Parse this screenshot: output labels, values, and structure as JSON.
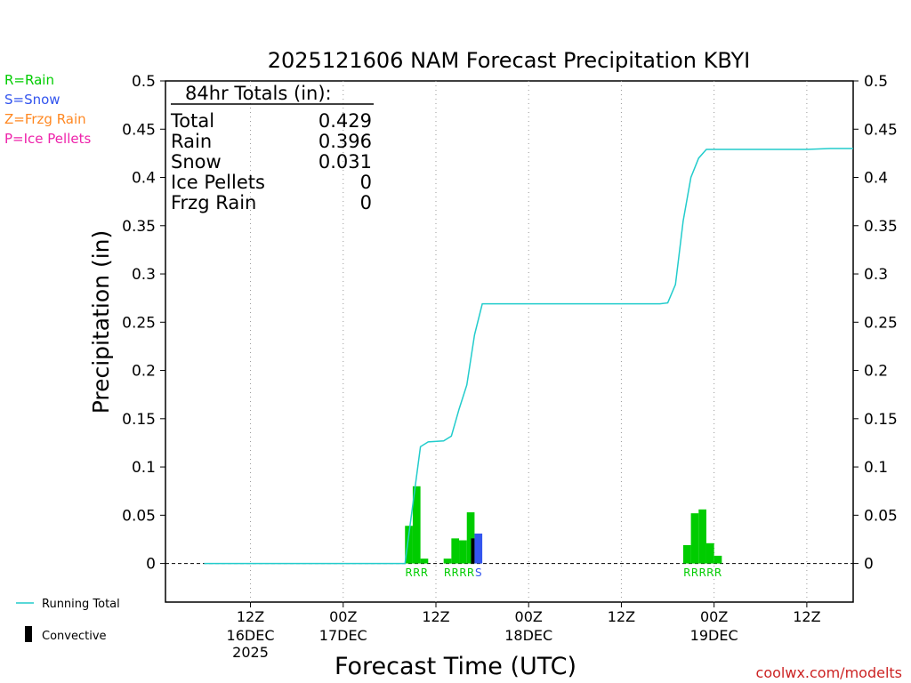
{
  "chart_data": {
    "type": "bar",
    "title": "2025121606 NAM Forecast Precipitation KBYI",
    "xlabel": "Forecast Time (UTC)",
    "ylabel": "Precipitation (in)",
    "ylim": [
      -0.04,
      0.5
    ],
    "y_ticks": [
      0,
      0.05,
      0.1,
      0.15,
      0.2,
      0.25,
      0.3,
      0.35,
      0.4,
      0.45,
      0.5
    ],
    "y_tick_labels": [
      "0",
      "0.05",
      "0.1",
      "0.15",
      "0.2",
      "0.25",
      "0.3",
      "0.35",
      "0.4",
      "0.45",
      "0.5"
    ],
    "x_range_hours": [
      -5,
      84
    ],
    "x_ticks": [
      {
        "hour": 6,
        "line1": "12Z",
        "line2": "16DEC",
        "line3": "2025"
      },
      {
        "hour": 18,
        "line1": "00Z",
        "line2": "17DEC",
        "line3": ""
      },
      {
        "hour": 30,
        "line1": "12Z",
        "line2": "",
        "line3": ""
      },
      {
        "hour": 42,
        "line1": "00Z",
        "line2": "18DEC",
        "line3": ""
      },
      {
        "hour": 54,
        "line1": "12Z",
        "line2": "",
        "line3": ""
      },
      {
        "hour": 66,
        "line1": "00Z",
        "line2": "19DEC",
        "line3": ""
      },
      {
        "hour": 78,
        "line1": "12Z",
        "line2": "",
        "line3": ""
      }
    ],
    "bars": [
      {
        "hour": 27,
        "value": 0.039,
        "ptype": "R",
        "convective": 0
      },
      {
        "hour": 28,
        "value": 0.08,
        "ptype": "R",
        "convective": 0
      },
      {
        "hour": 29,
        "value": 0.005,
        "ptype": "R",
        "convective": 0
      },
      {
        "hour": 32,
        "value": 0.005,
        "ptype": "R",
        "convective": 0
      },
      {
        "hour": 33,
        "value": 0.026,
        "ptype": "R",
        "convective": 0
      },
      {
        "hour": 34,
        "value": 0.024,
        "ptype": "R",
        "convective": 0
      },
      {
        "hour": 35,
        "value": 0.053,
        "ptype": "R",
        "convective": 0.026
      },
      {
        "hour": 36,
        "value": 0.031,
        "ptype": "S",
        "convective": 0
      },
      {
        "hour": 63,
        "value": 0.019,
        "ptype": "R",
        "convective": 0
      },
      {
        "hour": 64,
        "value": 0.052,
        "ptype": "R",
        "convective": 0
      },
      {
        "hour": 65,
        "value": 0.056,
        "ptype": "R",
        "convective": 0
      },
      {
        "hour": 66,
        "value": 0.021,
        "ptype": "R",
        "convective": 0
      },
      {
        "hour": 67,
        "value": 0.008,
        "ptype": "R",
        "convective": 0
      }
    ],
    "running_total": {
      "hours": [
        0,
        26,
        28,
        29,
        31,
        32,
        33,
        34,
        35,
        36,
        48,
        59,
        60,
        61,
        62,
        63,
        64,
        65,
        72,
        78,
        81,
        84
      ],
      "values": [
        0,
        0,
        0.121,
        0.126,
        0.127,
        0.132,
        0.16,
        0.185,
        0.237,
        0.269,
        0.269,
        0.269,
        0.27,
        0.289,
        0.355,
        0.4,
        0.42,
        0.429,
        0.429,
        0.429,
        0.43,
        0.43
      ]
    },
    "ptype_labels": [
      {
        "hour": 27,
        "text": "R",
        "ptype": "R"
      },
      {
        "hour": 28,
        "text": "R",
        "ptype": "R"
      },
      {
        "hour": 29,
        "text": "R",
        "ptype": "R"
      },
      {
        "hour": 32,
        "text": "R",
        "ptype": "R"
      },
      {
        "hour": 33,
        "text": "R",
        "ptype": "R"
      },
      {
        "hour": 34,
        "text": "R",
        "ptype": "R"
      },
      {
        "hour": 35,
        "text": "R",
        "ptype": "R"
      },
      {
        "hour": 36,
        "text": "S",
        "ptype": "S"
      },
      {
        "hour": 63,
        "text": "R",
        "ptype": "R"
      },
      {
        "hour": 64,
        "text": "R",
        "ptype": "R"
      },
      {
        "hour": 65,
        "text": "R",
        "ptype": "R"
      },
      {
        "hour": 66,
        "text": "R",
        "ptype": "R"
      },
      {
        "hour": 67,
        "text": "R",
        "ptype": "R"
      }
    ],
    "totals": {
      "header": "84hr Totals (in):",
      "rows": [
        {
          "label": "Total",
          "value": "0.429"
        },
        {
          "label": "Rain",
          "value": "0.396"
        },
        {
          "label": "Snow",
          "value": "0.031"
        },
        {
          "label": "Ice Pellets",
          "value": "0"
        },
        {
          "label": "Frzg Rain",
          "value": "0"
        }
      ]
    },
    "colors": {
      "rain": "#00cc00",
      "snow": "#3355ee",
      "frzg_rain": "#ff8822",
      "ice_pellets": "#ee22aa",
      "running_total": "#22cccc",
      "convective": "#000000"
    }
  },
  "legend": {
    "rain": "R=Rain",
    "snow": "S=Snow",
    "frzg_rain": "Z=Frzg Rain",
    "ice_pellets": "P=Ice Pellets",
    "running_total": "Running Total",
    "convective": "Convective"
  },
  "credit": "coolwx.com/modelts"
}
